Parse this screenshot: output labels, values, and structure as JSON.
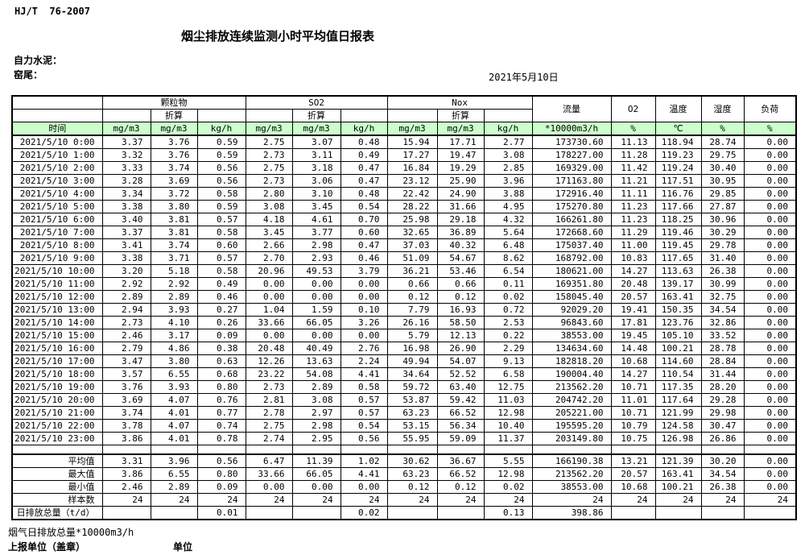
{
  "meta": {
    "standard": "HJ/T  76-2007",
    "title": "烟尘排放连续监测小时平均值日报表",
    "company_label": "自力水泥：",
    "station_label": "窑尾：",
    "date": "2021年5月10日"
  },
  "colors": {
    "header_green": "#CCFFCC",
    "border": "#000000"
  },
  "table": {
    "time_header": "时间",
    "conv_label": "折算",
    "groups": [
      {
        "label": "颗粒物"
      },
      {
        "label": "SO2"
      },
      {
        "label": "Nox"
      }
    ],
    "single_cols": [
      {
        "label": "流量",
        "unit": "*10000m3/h"
      },
      {
        "label": "O2",
        "unit": "%"
      },
      {
        "label": "温度",
        "unit": "℃"
      },
      {
        "label": "湿度",
        "unit": "%"
      },
      {
        "label": "负荷",
        "unit": "%"
      }
    ],
    "units": [
      "mg/m3",
      "mg/m3",
      "kg/h",
      "mg/m3",
      "mg/m3",
      "kg/h",
      "mg/m3",
      "mg/m3",
      "kg/h",
      "*10000m3/h",
      "%",
      "℃",
      "%",
      "%"
    ],
    "rows": [
      {
        "time": "2021/5/10 0:00",
        "values": [
          "3.37",
          "3.76",
          "0.59",
          "2.75",
          "3.07",
          "0.48",
          "15.94",
          "17.71",
          "2.77",
          "173730.60",
          "11.13",
          "118.94",
          "28.74",
          "0.00"
        ]
      },
      {
        "time": "2021/5/10 1:00",
        "values": [
          "3.32",
          "3.76",
          "0.59",
          "2.73",
          "3.11",
          "0.49",
          "17.27",
          "19.47",
          "3.08",
          "178227.00",
          "11.28",
          "119.23",
          "29.75",
          "0.00"
        ]
      },
      {
        "time": "2021/5/10 2:00",
        "values": [
          "3.33",
          "3.74",
          "0.56",
          "2.75",
          "3.18",
          "0.47",
          "16.84",
          "19.29",
          "2.85",
          "169329.00",
          "11.42",
          "119.24",
          "30.40",
          "0.00"
        ]
      },
      {
        "time": "2021/5/10 3:00",
        "values": [
          "3.28",
          "3.69",
          "0.56",
          "2.73",
          "3.06",
          "0.47",
          "23.12",
          "25.90",
          "3.96",
          "171163.80",
          "11.21",
          "117.51",
          "30.95",
          "0.00"
        ]
      },
      {
        "time": "2021/5/10 4:00",
        "values": [
          "3.34",
          "3.72",
          "0.58",
          "2.80",
          "3.10",
          "0.48",
          "22.42",
          "24.90",
          "3.88",
          "172916.40",
          "11.11",
          "116.76",
          "29.85",
          "0.00"
        ]
      },
      {
        "time": "2021/5/10 5:00",
        "values": [
          "3.38",
          "3.80",
          "0.59",
          "3.08",
          "3.45",
          "0.54",
          "28.22",
          "31.66",
          "4.95",
          "175270.80",
          "11.23",
          "117.66",
          "27.87",
          "0.00"
        ]
      },
      {
        "time": "2021/5/10 6:00",
        "values": [
          "3.40",
          "3.81",
          "0.57",
          "4.18",
          "4.61",
          "0.70",
          "25.98",
          "29.18",
          "4.32",
          "166261.80",
          "11.23",
          "118.25",
          "30.96",
          "0.00"
        ]
      },
      {
        "time": "2021/5/10 7:00",
        "values": [
          "3.37",
          "3.81",
          "0.58",
          "3.45",
          "3.77",
          "0.60",
          "32.65",
          "36.89",
          "5.64",
          "172668.60",
          "11.29",
          "119.46",
          "30.29",
          "0.00"
        ]
      },
      {
        "time": "2021/5/10 8:00",
        "values": [
          "3.41",
          "3.74",
          "0.60",
          "2.66",
          "2.98",
          "0.47",
          "37.03",
          "40.32",
          "6.48",
          "175037.40",
          "11.00",
          "119.45",
          "29.78",
          "0.00"
        ]
      },
      {
        "time": "2021/5/10 9:00",
        "values": [
          "3.38",
          "3.71",
          "0.57",
          "2.70",
          "2.93",
          "0.46",
          "51.09",
          "54.67",
          "8.62",
          "168792.00",
          "10.83",
          "117.65",
          "31.40",
          "0.00"
        ]
      },
      {
        "time": "2021/5/10 10:00",
        "values": [
          "3.20",
          "5.18",
          "0.58",
          "20.96",
          "49.53",
          "3.79",
          "36.21",
          "53.46",
          "6.54",
          "180621.00",
          "14.27",
          "113.63",
          "26.38",
          "0.00"
        ]
      },
      {
        "time": "2021/5/10 11:00",
        "values": [
          "2.92",
          "2.92",
          "0.49",
          "0.00",
          "0.00",
          "0.00",
          "0.66",
          "0.66",
          "0.11",
          "169351.80",
          "20.48",
          "139.17",
          "30.99",
          "0.00"
        ]
      },
      {
        "time": "2021/5/10 12:00",
        "values": [
          "2.89",
          "2.89",
          "0.46",
          "0.00",
          "0.00",
          "0.00",
          "0.12",
          "0.12",
          "0.02",
          "158045.40",
          "20.57",
          "163.41",
          "32.75",
          "0.00"
        ]
      },
      {
        "time": "2021/5/10 13:00",
        "values": [
          "2.94",
          "3.93",
          "0.27",
          "1.04",
          "1.59",
          "0.10",
          "7.79",
          "16.93",
          "0.72",
          "92029.20",
          "19.41",
          "150.35",
          "34.54",
          "0.00"
        ]
      },
      {
        "time": "2021/5/10 14:00",
        "values": [
          "2.73",
          "4.10",
          "0.26",
          "33.66",
          "66.05",
          "3.26",
          "26.16",
          "58.50",
          "2.53",
          "96843.60",
          "17.81",
          "123.76",
          "32.86",
          "0.00"
        ]
      },
      {
        "time": "2021/5/10 15:00",
        "values": [
          "2.46",
          "3.17",
          "0.09",
          "0.00",
          "0.00",
          "0.00",
          "5.79",
          "12.13",
          "0.22",
          "38553.00",
          "19.45",
          "105.10",
          "33.52",
          "0.00"
        ]
      },
      {
        "time": "2021/5/10 16:00",
        "values": [
          "2.79",
          "4.86",
          "0.38",
          "20.48",
          "40.49",
          "2.76",
          "16.98",
          "26.90",
          "2.29",
          "134634.60",
          "14.48",
          "100.21",
          "28.78",
          "0.00"
        ]
      },
      {
        "time": "2021/5/10 17:00",
        "values": [
          "3.47",
          "3.80",
          "0.63",
          "12.26",
          "13.63",
          "2.24",
          "49.94",
          "54.07",
          "9.13",
          "182818.20",
          "10.68",
          "114.60",
          "28.84",
          "0.00"
        ]
      },
      {
        "time": "2021/5/10 18:00",
        "values": [
          "3.57",
          "6.55",
          "0.68",
          "23.22",
          "54.08",
          "4.41",
          "34.64",
          "52.52",
          "6.58",
          "190004.40",
          "14.27",
          "110.54",
          "31.44",
          "0.00"
        ]
      },
      {
        "time": "2021/5/10 19:00",
        "values": [
          "3.76",
          "3.93",
          "0.80",
          "2.73",
          "2.89",
          "0.58",
          "59.72",
          "63.40",
          "12.75",
          "213562.20",
          "10.71",
          "117.35",
          "28.20",
          "0.00"
        ]
      },
      {
        "time": "2021/5/10 20:00",
        "values": [
          "3.69",
          "4.07",
          "0.76",
          "2.81",
          "3.08",
          "0.57",
          "53.87",
          "59.42",
          "11.03",
          "204742.20",
          "11.01",
          "117.64",
          "29.28",
          "0.00"
        ]
      },
      {
        "time": "2021/5/10 21:00",
        "values": [
          "3.74",
          "4.01",
          "0.77",
          "2.78",
          "2.97",
          "0.57",
          "63.23",
          "66.52",
          "12.98",
          "205221.00",
          "10.71",
          "121.99",
          "29.98",
          "0.00"
        ]
      },
      {
        "time": "2021/5/10 22:00",
        "values": [
          "3.78",
          "4.07",
          "0.74",
          "2.75",
          "2.98",
          "0.54",
          "53.15",
          "56.34",
          "10.40",
          "195595.20",
          "10.79",
          "124.58",
          "30.47",
          "0.00"
        ]
      },
      {
        "time": "2021/5/10 23:00",
        "values": [
          "3.86",
          "4.01",
          "0.78",
          "2.74",
          "2.95",
          "0.56",
          "55.95",
          "59.09",
          "11.37",
          "203149.80",
          "10.75",
          "126.98",
          "26.86",
          "0.00"
        ]
      }
    ],
    "summary": [
      {
        "label": "平均值",
        "values": [
          "3.31",
          "3.96",
          "0.56",
          "6.47",
          "11.39",
          "1.02",
          "30.62",
          "36.67",
          "5.55",
          "166190.38",
          "13.21",
          "121.39",
          "30.20",
          "0.00"
        ]
      },
      {
        "label": "最大值",
        "values": [
          "3.86",
          "6.55",
          "0.80",
          "33.66",
          "66.05",
          "4.41",
          "63.23",
          "66.52",
          "12.98",
          "213562.20",
          "20.57",
          "163.41",
          "34.54",
          "0.00"
        ]
      },
      {
        "label": "最小值",
        "values": [
          "2.46",
          "2.89",
          "0.09",
          "0.00",
          "0.00",
          "0.00",
          "0.12",
          "0.12",
          "0.02",
          "38553.00",
          "10.68",
          "100.21",
          "26.38",
          "0.00"
        ]
      },
      {
        "label": "样本数",
        "values": [
          "24",
          "24",
          "24",
          "24",
          "24",
          "24",
          "24",
          "24",
          "24",
          "24",
          "24",
          "24",
          "24",
          "24"
        ]
      },
      {
        "label": "日排放总量（t/d）",
        "label_align": "left",
        "values": [
          "",
          "",
          "0.01",
          "",
          "",
          "0.02",
          "",
          "",
          "0.13",
          "398.86",
          "",
          "",
          "",
          ""
        ]
      }
    ]
  },
  "footer": {
    "flue_total_label": "烟气日排放总量*10000m3/h",
    "report_unit_label": "上报单位（盖章）",
    "unit_label": "单位"
  }
}
